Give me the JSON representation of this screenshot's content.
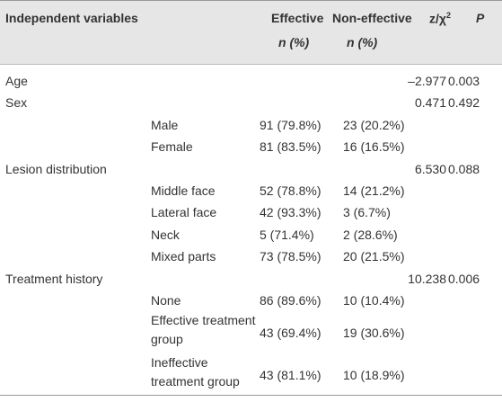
{
  "header": {
    "columns": [
      "Independent variables",
      "Effective",
      "Non-effective",
      "z/χ",
      "P"
    ],
    "stat_superscript": "2",
    "subheader": [
      "n (%)",
      "n (%)"
    ]
  },
  "rows": [
    {
      "label": "Age",
      "stat": "–2.977",
      "p": "0.003"
    },
    {
      "label": "Sex",
      "stat": "0.471",
      "p": "0.492"
    },
    {
      "sublabel": "Male",
      "effective": "91 (79.8%)",
      "non_effective": "23 (20.2%)"
    },
    {
      "sublabel": "Female",
      "effective": "81 (83.5%)",
      "non_effective": "16 (16.5%)"
    },
    {
      "label": "Lesion distribution",
      "stat": "6.530",
      "p": "0.088"
    },
    {
      "sublabel": "Middle face",
      "effective": "52 (78.8%)",
      "non_effective": "14 (21.2%)"
    },
    {
      "sublabel": "Lateral face",
      "effective": "42 (93.3%)",
      "non_effective": "3 (6.7%)"
    },
    {
      "sublabel": "Neck",
      "effective": "5 (71.4%)",
      "non_effective": "2 (28.6%)"
    },
    {
      "sublabel": "Mixed parts",
      "effective": "73 (78.5%)",
      "non_effective": "20 (21.5%)"
    },
    {
      "label": "Treatment history",
      "stat": "10.238",
      "p": "0.006"
    },
    {
      "sublabel": "None",
      "effective": "86 (89.6%)",
      "non_effective": "10 (10.4%)"
    },
    {
      "sublabel": "Effective treatment group",
      "effective": "43 (69.4%)",
      "non_effective": "19 (30.6%)"
    },
    {
      "sublabel": "Ineffective treatment group",
      "effective": "43 (81.1%)",
      "non_effective": "10 (18.9%)"
    }
  ]
}
